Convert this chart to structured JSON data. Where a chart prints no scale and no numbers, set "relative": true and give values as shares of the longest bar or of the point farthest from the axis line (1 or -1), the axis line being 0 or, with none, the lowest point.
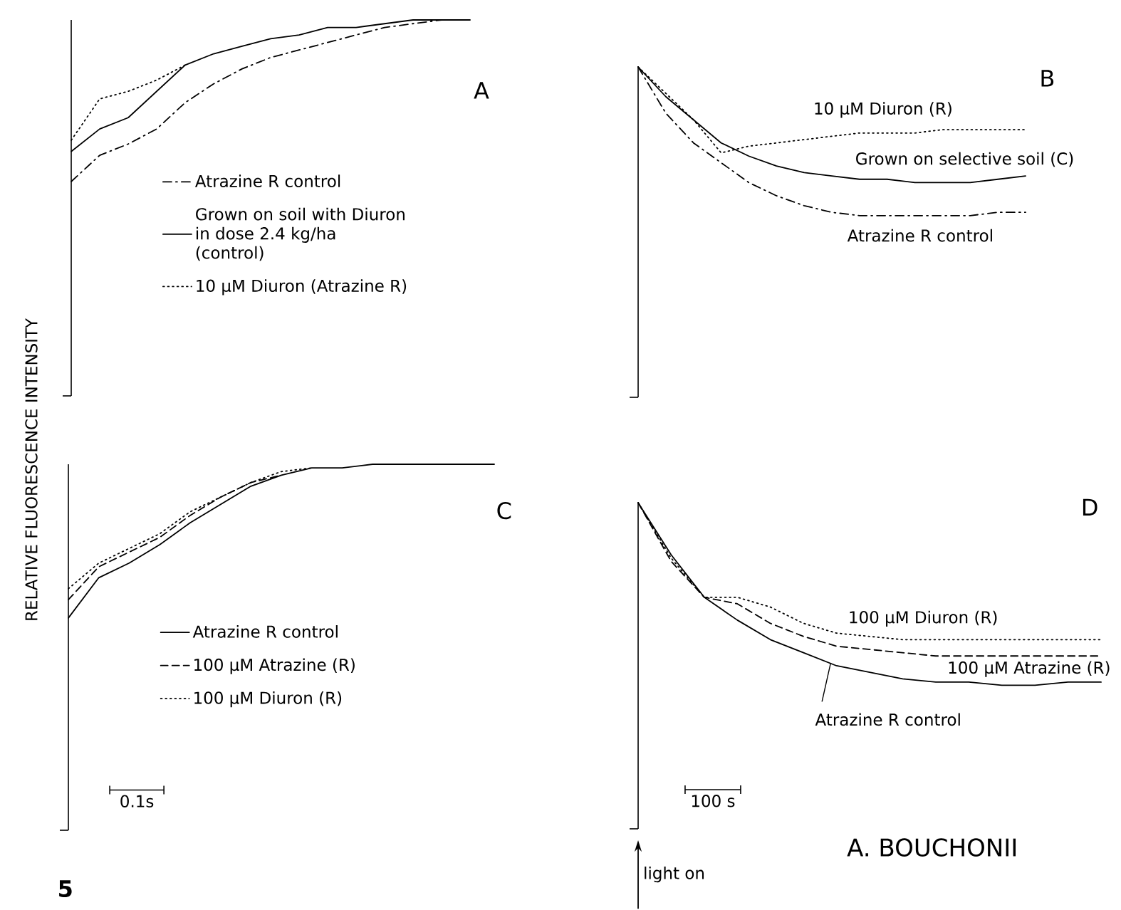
{
  "chart_data": [
    {
      "type": "line",
      "title": "A",
      "ylabel": "RELATIVE FLUORESCENCE INTENSITY",
      "relative": true,
      "legend": "right",
      "categories": [
        null,
        null,
        null,
        null,
        null,
        null,
        null,
        null,
        null,
        null,
        null,
        null,
        null,
        null,
        null
      ],
      "series": [
        {
          "name": "Atrazine R control",
          "color": "#000000",
          "line_style": "dashdot",
          "values": [
            0.57,
            0.64,
            0.67,
            0.71,
            0.78,
            0.83,
            0.87,
            0.9,
            0.92,
            0.94,
            0.96,
            0.98,
            0.99,
            1.0,
            1.0
          ]
        },
        {
          "name": "Grown on soil with Diuron in dose 2.4 kg/ha (control)",
          "color": "#000000",
          "line_style": "solid",
          "values": [
            0.65,
            0.71,
            0.74,
            0.81,
            0.88,
            0.91,
            0.93,
            0.95,
            0.96,
            0.98,
            0.98,
            0.99,
            1.0,
            1.0,
            1.0
          ]
        },
        {
          "name": "10 µM Diuron (Atrazine R)",
          "color": "#000000",
          "line_style": "dotted",
          "values": [
            0.68,
            0.79,
            0.81,
            0.84,
            0.88,
            null,
            null,
            null,
            null,
            null,
            null,
            null,
            null,
            null,
            null
          ]
        }
      ]
    },
    {
      "type": "line",
      "title": "B",
      "relative": true,
      "categories": [
        null,
        null,
        null,
        null,
        null,
        null,
        null,
        null,
        null,
        null,
        null,
        null,
        null,
        null,
        null
      ],
      "series": [
        {
          "name": "10 µM Diuron (R)",
          "color": "#000000",
          "line_style": "dotted",
          "values": [
            1.0,
            0.92,
            0.84,
            0.74,
            0.76,
            0.77,
            0.78,
            0.79,
            0.8,
            0.8,
            0.8,
            0.81,
            0.81,
            0.81,
            0.81
          ]
        },
        {
          "name": "Grown on selective soil (C)",
          "color": "#000000",
          "line_style": "solid",
          "values": [
            1.0,
            0.91,
            0.84,
            0.77,
            0.73,
            0.7,
            0.68,
            0.67,
            0.66,
            0.66,
            0.65,
            0.65,
            0.65,
            0.66,
            0.67
          ]
        },
        {
          "name": "Atrazine R control",
          "color": "#000000",
          "line_style": "dashdot",
          "values": [
            1.0,
            0.86,
            0.77,
            0.71,
            0.65,
            0.61,
            0.58,
            0.56,
            0.55,
            0.55,
            0.55,
            0.55,
            0.55,
            0.56,
            0.56
          ]
        }
      ]
    },
    {
      "type": "line",
      "title": "C",
      "relative": true,
      "legend": "bottom left",
      "annotations": [
        "0.1s",
        "5"
      ],
      "categories": [
        null,
        null,
        null,
        null,
        null,
        null,
        null,
        null,
        null,
        null,
        null,
        null,
        null,
        null,
        null
      ],
      "series": [
        {
          "name": "Atrazine R control",
          "color": "#000000",
          "line_style": "solid",
          "values": [
            0.58,
            0.69,
            0.73,
            0.78,
            0.84,
            0.89,
            0.94,
            0.97,
            0.99,
            0.99,
            1.0,
            1.0,
            1.0,
            1.0,
            1.0
          ]
        },
        {
          "name": "100 µM Atrazine (R)",
          "color": "#000000",
          "line_style": "dashed",
          "values": [
            0.63,
            0.72,
            0.76,
            0.8,
            0.86,
            0.91,
            0.95,
            0.97,
            null,
            null,
            null,
            null,
            null,
            null,
            null
          ]
        },
        {
          "name": "100 µM Diuron (R)",
          "color": "#000000",
          "line_style": "dotted",
          "values": [
            0.66,
            0.73,
            0.77,
            0.81,
            0.87,
            0.91,
            0.95,
            0.98,
            0.99,
            null,
            null,
            null,
            null,
            null,
            null
          ]
        }
      ]
    },
    {
      "type": "line",
      "title": "D",
      "relative": true,
      "annotations": [
        "100 s",
        "light on",
        "A. BOUCHONII"
      ],
      "categories": [
        null,
        null,
        null,
        null,
        null,
        null,
        null,
        null,
        null,
        null,
        null,
        null,
        null,
        null,
        null
      ],
      "series": [
        {
          "name": "100 µM Diuron (R)",
          "color": "#000000",
          "line_style": "dotted",
          "values": [
            1.0,
            0.83,
            0.71,
            0.71,
            0.68,
            0.63,
            0.6,
            0.59,
            0.58,
            0.58,
            0.58,
            0.58,
            0.58,
            0.58,
            0.58
          ]
        },
        {
          "name": "100 µM Atrazine (R)",
          "color": "#000000",
          "line_style": "dashed",
          "values": [
            1.0,
            0.82,
            0.71,
            0.69,
            0.63,
            0.59,
            0.56,
            0.55,
            0.54,
            0.53,
            0.53,
            0.53,
            0.53,
            0.53,
            0.53
          ]
        },
        {
          "name": "Atrazine R control",
          "color": "#000000",
          "line_style": "solid",
          "values": [
            1.0,
            0.84,
            0.71,
            0.64,
            0.58,
            0.54,
            0.5,
            0.48,
            0.46,
            0.45,
            0.45,
            0.44,
            0.44,
            0.45,
            0.45
          ]
        }
      ]
    }
  ]
}
